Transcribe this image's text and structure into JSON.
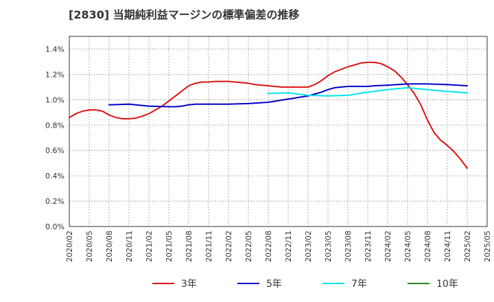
{
  "chart_data": {
    "type": "line",
    "title": "[2830]  当期純利益マージンの標準偏差の推移",
    "x_ticks": [
      "2020/02",
      "2020/05",
      "2020/08",
      "2020/11",
      "2021/02",
      "2021/05",
      "2021/08",
      "2021/11",
      "2022/02",
      "2022/05",
      "2022/08",
      "2022/11",
      "2023/02",
      "2023/05",
      "2023/08",
      "2023/11",
      "2024/02",
      "2024/05",
      "2024/08",
      "2024/11",
      "2025/02",
      "2025/05"
    ],
    "y_ticks": [
      "0.0%",
      "0.2%",
      "0.4%",
      "0.6%",
      "0.8%",
      "1.0%",
      "1.2%",
      "1.4%"
    ],
    "ylim": [
      0,
      1.5
    ],
    "grid": true,
    "legend_position": "bottom",
    "series": [
      {
        "name": "3年",
        "color": "#dd1111",
        "x": [
          "2020/02",
          "2020/03",
          "2020/04",
          "2020/05",
          "2020/06",
          "2020/07",
          "2020/08",
          "2020/09",
          "2020/10",
          "2020/11",
          "2020/12",
          "2021/01",
          "2021/02",
          "2021/03",
          "2021/04",
          "2021/05",
          "2021/06",
          "2021/07",
          "2021/08",
          "2021/09",
          "2021/10",
          "2021/11",
          "2021/12",
          "2022/01",
          "2022/02",
          "2022/03",
          "2022/04",
          "2022/05",
          "2022/06",
          "2022/07",
          "2022/08",
          "2022/09",
          "2022/10",
          "2022/11",
          "2022/12",
          "2023/01",
          "2023/02",
          "2023/03",
          "2023/04",
          "2023/05",
          "2023/06",
          "2023/07",
          "2023/08",
          "2023/09",
          "2023/10",
          "2023/11",
          "2023/12",
          "2024/01",
          "2024/02",
          "2024/03",
          "2024/04",
          "2024/05",
          "2024/06",
          "2024/07",
          "2024/08",
          "2024/09",
          "2024/10",
          "2024/11",
          "2024/12",
          "2025/01",
          "2025/02"
        ],
        "values": [
          0.86,
          0.89,
          0.91,
          0.92,
          0.92,
          0.91,
          0.88,
          0.86,
          0.85,
          0.85,
          0.855,
          0.87,
          0.89,
          0.92,
          0.95,
          0.99,
          1.03,
          1.07,
          1.11,
          1.13,
          1.14,
          1.14,
          1.145,
          1.145,
          1.145,
          1.14,
          1.135,
          1.13,
          1.12,
          1.115,
          1.11,
          1.105,
          1.1,
          1.1,
          1.1,
          1.1,
          1.1,
          1.12,
          1.15,
          1.19,
          1.22,
          1.24,
          1.26,
          1.275,
          1.29,
          1.295,
          1.295,
          1.285,
          1.26,
          1.23,
          1.18,
          1.12,
          1.05,
          0.96,
          0.84,
          0.74,
          0.68,
          0.64,
          0.59,
          0.53,
          0.46
        ]
      },
      {
        "name": "5年",
        "color": "#0000cc",
        "x": [
          "2020/08",
          "2020/11",
          "2021/02",
          "2021/05",
          "2021/06",
          "2021/07",
          "2021/08",
          "2021/09",
          "2021/10",
          "2021/11",
          "2022/02",
          "2022/05",
          "2022/08",
          "2022/11",
          "2023/02",
          "2023/03",
          "2023/04",
          "2023/05",
          "2023/06",
          "2023/07",
          "2023/08",
          "2023/09",
          "2023/10",
          "2023/11",
          "2023/12",
          "2024/02",
          "2024/05",
          "2024/08",
          "2024/11",
          "2025/02"
        ],
        "values": [
          0.96,
          0.965,
          0.95,
          0.945,
          0.945,
          0.95,
          0.96,
          0.965,
          0.965,
          0.965,
          0.965,
          0.97,
          0.98,
          1.005,
          1.03,
          1.045,
          1.06,
          1.08,
          1.095,
          1.1,
          1.105,
          1.105,
          1.105,
          1.105,
          1.11,
          1.115,
          1.125,
          1.125,
          1.12,
          1.11
        ]
      },
      {
        "name": "7年",
        "color": "#00e5ee",
        "x": [
          "2022/08",
          "2022/11",
          "2023/02",
          "2023/05",
          "2023/08",
          "2023/11",
          "2024/02",
          "2024/05",
          "2024/08",
          "2024/11",
          "2025/02"
        ],
        "values": [
          1.05,
          1.055,
          1.035,
          1.03,
          1.035,
          1.06,
          1.08,
          1.095,
          1.08,
          1.065,
          1.055
        ]
      },
      {
        "name": "10年",
        "color": "#228b22",
        "x": [],
        "values": []
      }
    ]
  }
}
